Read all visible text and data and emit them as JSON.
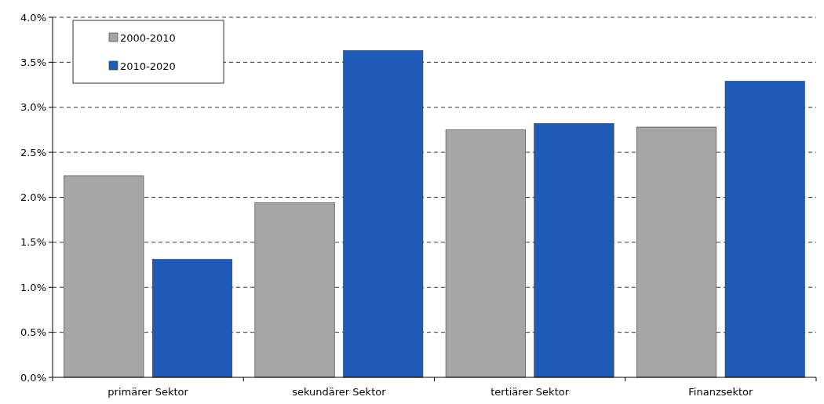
{
  "chart_data": {
    "type": "bar",
    "categories": [
      "primärer Sektor",
      "sekundärer Sektor",
      "tertiärer Sektor",
      "Finanzsektor"
    ],
    "series": [
      {
        "name": "2000-2010",
        "color": "#a6a6a6",
        "values": [
          2.24,
          1.94,
          2.75,
          2.78
        ]
      },
      {
        "name": "2010-2020",
        "color": "#1f5cb8",
        "values": [
          1.31,
          3.63,
          2.82,
          3.29
        ]
      }
    ],
    "ylim": [
      0,
      4
    ],
    "yticks": [
      {
        "value": 0,
        "label": "0.0%"
      },
      {
        "value": 0.5,
        "label": "0.5%"
      },
      {
        "value": 1,
        "label": "1.0%"
      },
      {
        "value": 1.5,
        "label": "1.5%"
      },
      {
        "value": 2,
        "label": "2.0%"
      },
      {
        "value": 2.5,
        "label": "2.5%"
      },
      {
        "value": 3,
        "label": "3.0%"
      },
      {
        "value": 3.5,
        "label": "3.5%"
      },
      {
        "value": 4,
        "label": "4.0%"
      }
    ],
    "grid": "y",
    "legend": "top left"
  }
}
